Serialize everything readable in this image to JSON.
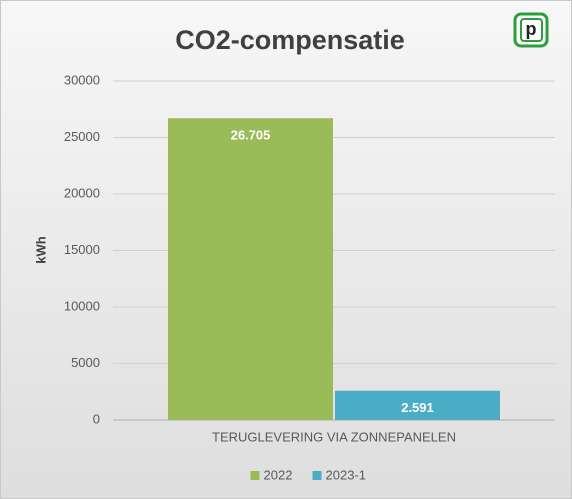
{
  "chart_data": {
    "type": "bar",
    "title": "CO2-compensatie",
    "logo": "p",
    "ylabel": "kWh",
    "categories": [
      "TERUGLEVERING VIA ZONNEPANELEN"
    ],
    "series": [
      {
        "name": "2022",
        "color": "#9bbb59",
        "values": [
          26705
        ],
        "value_labels": [
          "26.705"
        ]
      },
      {
        "name": "2023-1",
        "color": "#4bacc6",
        "values": [
          2591
        ],
        "value_labels": [
          "2.591"
        ]
      }
    ],
    "ylim": [
      0,
      30000
    ],
    "yticks": [
      0,
      5000,
      10000,
      15000,
      20000,
      25000,
      30000
    ],
    "grid": true,
    "legend": "bottom"
  }
}
